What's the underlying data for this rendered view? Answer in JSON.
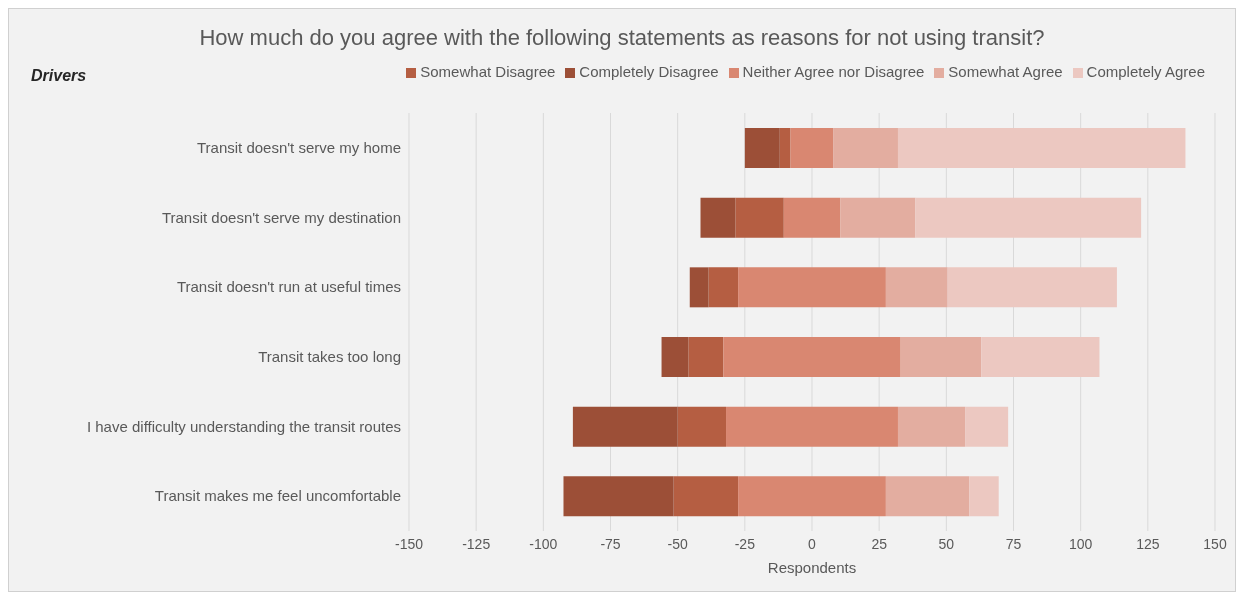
{
  "chart_data": {
    "type": "bar",
    "orientation": "horizontal",
    "title": "How much do you agree with the following statements as reasons for not using transit?",
    "annotations": [
      "Drivers"
    ],
    "xlabel": "Respondents",
    "categories": [
      "Transit doesn't serve my home",
      "Transit doesn't serve my destination",
      "Transit doesn't run at useful times",
      "Transit takes too long",
      "I have difficulty understanding the transit routes",
      "Transit makes me feel uncomfortable"
    ],
    "series": [
      {
        "name": "Somewhat Disagree",
        "color": "#b55e42",
        "values": [
          4,
          18,
          11,
          13,
          18,
          24
        ],
        "base": [
          -12,
          -28.5,
          -38.5,
          -46,
          -50,
          -51.5
        ]
      },
      {
        "name": "Completely Disagree",
        "color": "#9c4f37",
        "values": [
          13,
          13,
          7,
          10,
          39,
          41
        ],
        "base": [
          -25,
          -41.5,
          -45.5,
          -56,
          -89,
          -92.5
        ]
      },
      {
        "name": "Neither Agree nor Disagree",
        "color": "#d98771",
        "values": [
          16,
          21,
          55,
          66,
          64,
          55
        ],
        "base": [
          -8,
          -10.5,
          -27.5,
          -33,
          -32,
          -27.5
        ]
      },
      {
        "name": "Somewhat Agree",
        "color": "#e3ada0",
        "values": [
          24,
          28,
          23,
          30,
          25,
          31
        ],
        "base": [
          8,
          10.5,
          27.5,
          33,
          32,
          27.5
        ]
      },
      {
        "name": "Completely Agree",
        "color": "#ecc8c1",
        "values": [
          107,
          84,
          63,
          44,
          16,
          11
        ],
        "base": [
          32,
          38.5,
          50.5,
          63,
          57,
          58.5
        ]
      }
    ],
    "xlim": [
      -150,
      150
    ],
    "xticks": [
      -150,
      -125,
      -100,
      -75,
      -50,
      -25,
      0,
      25,
      50,
      75,
      100,
      125,
      150
    ],
    "grid": "x",
    "legend": "top right"
  }
}
